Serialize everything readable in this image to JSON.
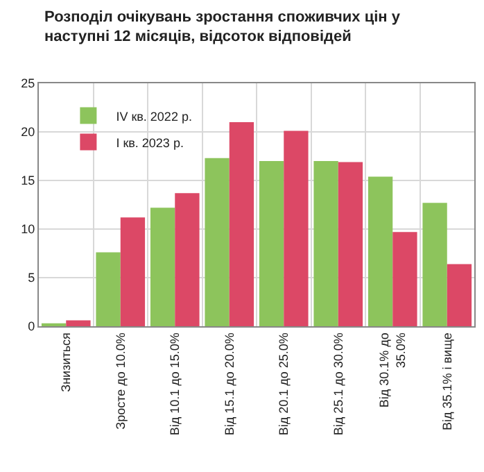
{
  "chart_data": {
    "type": "bar",
    "title": "Розподіл очікувань зростання споживчих цін у\nнаступні 12 місяців, відсоток відповідей",
    "categories": [
      "Знизиться",
      "Зросте до 10.0%",
      "Від 10.1 до 15.0%",
      "Від 15.1 до 20.0%",
      "Від 20.1 до 25.0%",
      "Від 25.1 до 30.0%",
      "Від 30.1% до\n35.0%",
      "Від 35.1% і вище"
    ],
    "series": [
      {
        "name": "IV кв. 2022 р.",
        "color": "#8dc45c",
        "values": [
          0.3,
          7.6,
          12.2,
          17.3,
          17.0,
          17.0,
          15.4,
          12.7
        ]
      },
      {
        "name": "I кв. 2023 р.",
        "color": "#dc4866",
        "values": [
          0.6,
          11.2,
          13.7,
          21.0,
          20.1,
          16.9,
          9.7,
          6.4
        ]
      }
    ],
    "ylim": [
      0,
      25
    ],
    "yticks": [
      0,
      5,
      10,
      15,
      20,
      25
    ],
    "grid": true,
    "legend": "top left"
  }
}
